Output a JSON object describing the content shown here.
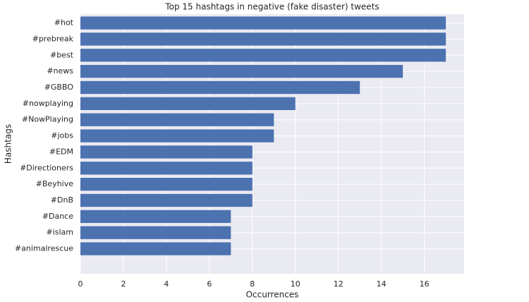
{
  "chart_data": {
    "type": "barh",
    "title": "Top 15 hashtags in negative (fake disaster) tweets",
    "xlabel": "Occurrences",
    "ylabel": "Hashtags",
    "categories": [
      "#hot",
      "#prebreak",
      "#best",
      "#news",
      "#GBBO",
      "#nowplaying",
      "#NowPlaying",
      "#jobs",
      "#EDM",
      "#Directioners",
      "#Beyhive",
      "#DnB",
      "#Dance",
      "#islam",
      "#animalrescue"
    ],
    "values": [
      17,
      17,
      17,
      15,
      13,
      10,
      9,
      9,
      8,
      8,
      8,
      8,
      7,
      7,
      7
    ],
    "color": "#4c72b0",
    "xlim": [
      0,
      17.85
    ],
    "xticks": [
      0,
      2,
      4,
      6,
      8,
      10,
      12,
      14,
      16
    ],
    "grid": true
  }
}
